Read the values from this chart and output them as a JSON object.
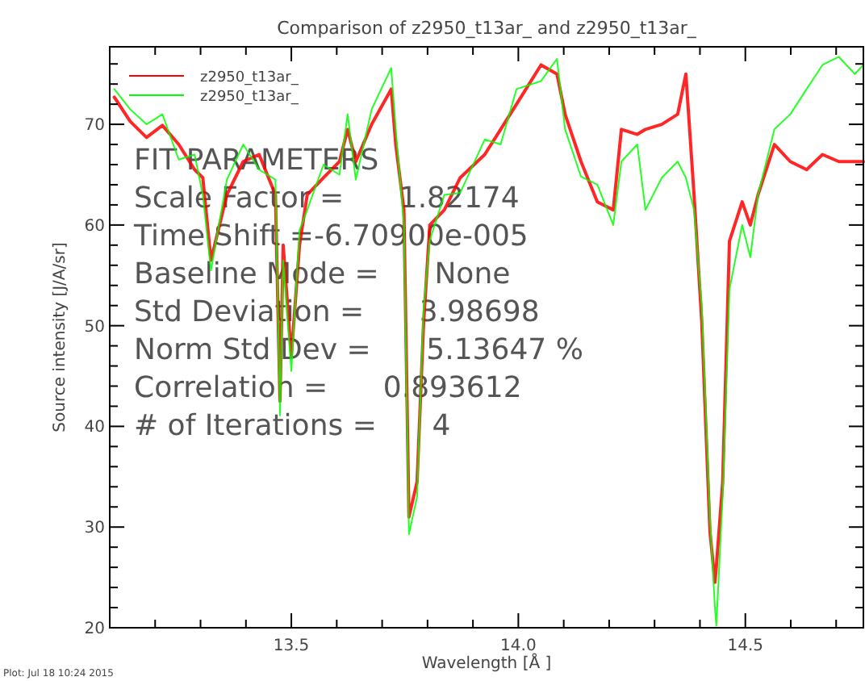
{
  "chart_data": {
    "type": "line",
    "title": "Comparison of z2950_t13ar_ and z2950_t13ar_",
    "xlabel": "Wavelength [Å ]",
    "ylabel": "Source intensity [J/A/sr]",
    "xlim": [
      13.1,
      14.76
    ],
    "ylim": [
      20,
      77.7
    ],
    "xticks": [
      {
        "value": 13.2,
        "label": null
      },
      {
        "value": 13.3,
        "label": null
      },
      {
        "value": 13.4,
        "label": null
      },
      {
        "value": 13.5,
        "label": "13.5"
      },
      {
        "value": 13.6,
        "label": null
      },
      {
        "value": 13.7,
        "label": null
      },
      {
        "value": 13.8,
        "label": null
      },
      {
        "value": 13.9,
        "label": null
      },
      {
        "value": 14,
        "label": "14.0"
      },
      {
        "value": 14.1,
        "label": null
      },
      {
        "value": 14.2,
        "label": null
      },
      {
        "value": 14.3,
        "label": null
      },
      {
        "value": 14.4,
        "label": null
      },
      {
        "value": 14.5,
        "label": "14.5"
      },
      {
        "value": 14.6,
        "label": null
      },
      {
        "value": 14.7,
        "label": null
      }
    ],
    "yticks": [
      20,
      {
        "value": 22,
        "label": null
      },
      {
        "value": 24,
        "label": null
      },
      {
        "value": 26,
        "label": null
      },
      {
        "value": 28,
        "label": null
      },
      30,
      {
        "value": 32,
        "label": null
      },
      {
        "value": 34,
        "label": null
      },
      {
        "value": 36,
        "label": null
      },
      {
        "value": 38,
        "label": null
      },
      40,
      {
        "value": 42,
        "label": null
      },
      {
        "value": 44,
        "label": null
      },
      {
        "value": 46,
        "label": null
      },
      {
        "value": 48,
        "label": null
      },
      50,
      {
        "value": 52,
        "label": null
      },
      {
        "value": 54,
        "label": null
      },
      {
        "value": 56,
        "label": null
      },
      {
        "value": 58,
        "label": null
      },
      60,
      {
        "value": 62,
        "label": null
      },
      {
        "value": 64,
        "label": null
      },
      {
        "value": 66,
        "label": null
      },
      {
        "value": 68,
        "label": null
      },
      70,
      {
        "value": 72,
        "label": null
      },
      {
        "value": 74,
        "label": null
      },
      {
        "value": 76,
        "label": null
      }
    ],
    "x": [
      13.11,
      13.145,
      13.181,
      13.216,
      13.252,
      13.287,
      13.305,
      13.323,
      13.358,
      13.394,
      13.429,
      13.465,
      13.475,
      13.482,
      13.5,
      13.518,
      13.535,
      13.571,
      13.606,
      13.624,
      13.642,
      13.677,
      13.72,
      13.73,
      13.748,
      13.759,
      13.777,
      13.791,
      13.805,
      13.837,
      13.872,
      13.926,
      13.961,
      13.996,
      14.05,
      14.085,
      14.103,
      14.138,
      14.174,
      14.209,
      14.227,
      14.262,
      14.28,
      14.316,
      14.351,
      14.369,
      14.387,
      14.404,
      14.422,
      14.433,
      14.436,
      14.45,
      14.465,
      14.493,
      14.511,
      14.528,
      14.564,
      14.599,
      14.635,
      14.67,
      14.706,
      14.741,
      14.76
    ],
    "series": [
      {
        "name": "z2950_t13ar_",
        "color": "#ff0000",
        "values": [
          72.7,
          70.3,
          68.7,
          69.9,
          68,
          65.5,
          64.7,
          56.5,
          63,
          66.3,
          67,
          63,
          42.5,
          58,
          47,
          58,
          63,
          64.7,
          66.3,
          69.5,
          66.3,
          70,
          73.5,
          68,
          61.5,
          31,
          34.5,
          50,
          60,
          61.5,
          64.7,
          67,
          69.5,
          72,
          75.9,
          75,
          71,
          66.3,
          62.3,
          61.5,
          69.5,
          69,
          69.5,
          70,
          71,
          75,
          63,
          50.4,
          29.6,
          24.5,
          26,
          34.4,
          58.4,
          62.3,
          60,
          63,
          68,
          66.3,
          65.5,
          67,
          66.3,
          66.3,
          66.3
        ]
      },
      {
        "name": "z2950_t13ar_",
        "color": "#00ff00",
        "values": [
          73.5,
          71.5,
          70,
          71,
          66.5,
          67,
          63,
          55.5,
          64.5,
          68,
          65.5,
          64.5,
          41.1,
          56.5,
          45.5,
          59.5,
          61.5,
          66,
          65,
          71,
          64.5,
          71.5,
          75.6,
          69.5,
          60,
          29.3,
          33,
          51.5,
          58.5,
          63,
          63.2,
          68.5,
          68,
          73.5,
          74.3,
          76.5,
          69.5,
          64.8,
          64,
          60,
          66.3,
          68,
          61.5,
          64.7,
          66.3,
          64.7,
          61.5,
          52,
          31,
          22,
          20.2,
          33,
          53.6,
          60,
          56.8,
          63,
          69.5,
          71,
          73.5,
          75.9,
          76.7,
          75,
          75.9
        ]
      }
    ],
    "legend": "top left",
    "annotations": [
      "FIT PARAMETERS",
      "Scale Factor =      1.82174",
      "Time Shift =-6.70900e-005",
      "Baseline Mode =      None",
      "Std Deviation =      3.98698",
      "Norm Std Dev =      5.13647 %",
      "Correlation =      0.893612",
      "# of Iterations =      4",
      "Plot: Jul 18 10:24 2015"
    ]
  }
}
